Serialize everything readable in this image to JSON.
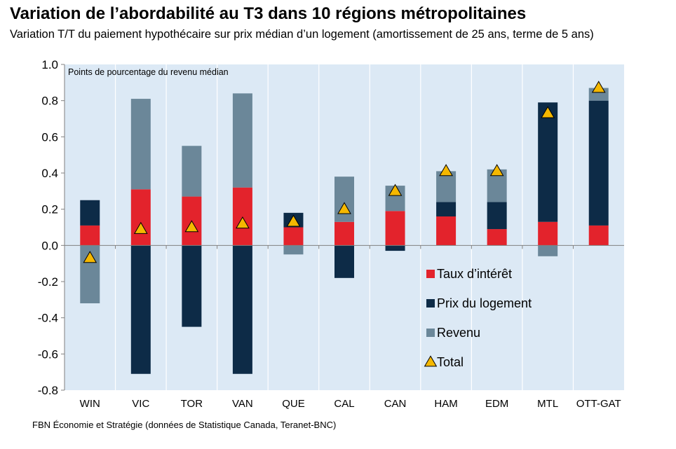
{
  "title": "Variation de l’abordabilité au T3 dans 10 régions métropolitaines",
  "subtitle": "Variation T/T du paiement hypothécaire sur prix médian d’un logement (amortissement de 25 ans, terme de 5 ans)",
  "source": "FBN Économie et Stratégie (données de Statistique Canada, Teranet-BNC)",
  "colors": {
    "plot_bg": "#dce9f5",
    "gridline": "#ffffff",
    "taux": "#e3232c",
    "prix": "#0d2b47",
    "revenu": "#6b8799",
    "total_fill": "#f5b800",
    "total_stroke": "#000000"
  },
  "chart_data": {
    "type": "bar",
    "stacked": true,
    "unit_note": "Points de pourcentage du revenu médian",
    "ylim": [
      -0.8,
      1.0
    ],
    "yticks": [
      "1.0",
      "0.8",
      "0.6",
      "0.4",
      "0.2",
      "0.0",
      "-0.2",
      "-0.4",
      "-0.6",
      "-0.8"
    ],
    "ytick_values": [
      1.0,
      0.8,
      0.6,
      0.4,
      0.2,
      0.0,
      -0.2,
      -0.4,
      -0.6,
      -0.8
    ],
    "categories": [
      "WIN",
      "VIC",
      "TOR",
      "VAN",
      "QUE",
      "CAL",
      "CAN",
      "HAM",
      "EDM",
      "MTL",
      "OTT-GAT"
    ],
    "series": [
      {
        "name": "Taux d’intérêt",
        "color_key": "taux",
        "values": [
          0.11,
          0.31,
          0.27,
          0.32,
          0.1,
          0.13,
          0.19,
          0.16,
          0.09,
          0.13,
          0.11
        ]
      },
      {
        "name": "Prix du logement",
        "color_key": "prix",
        "values": [
          0.14,
          -0.71,
          -0.45,
          -0.71,
          0.08,
          -0.18,
          -0.03,
          0.08,
          0.15,
          0.66,
          0.69
        ]
      },
      {
        "name": "Revenu",
        "color_key": "revenu",
        "values": [
          -0.32,
          0.5,
          0.28,
          0.52,
          -0.05,
          0.25,
          0.14,
          0.17,
          0.18,
          -0.06,
          0.07
        ]
      },
      {
        "name": "Total",
        "marker": "triangle",
        "values": [
          -0.07,
          0.09,
          0.1,
          0.12,
          0.13,
          0.2,
          0.3,
          0.41,
          0.41,
          0.73,
          0.87
        ]
      }
    ],
    "legend_position": "bottom-right",
    "grid": "vertical"
  }
}
